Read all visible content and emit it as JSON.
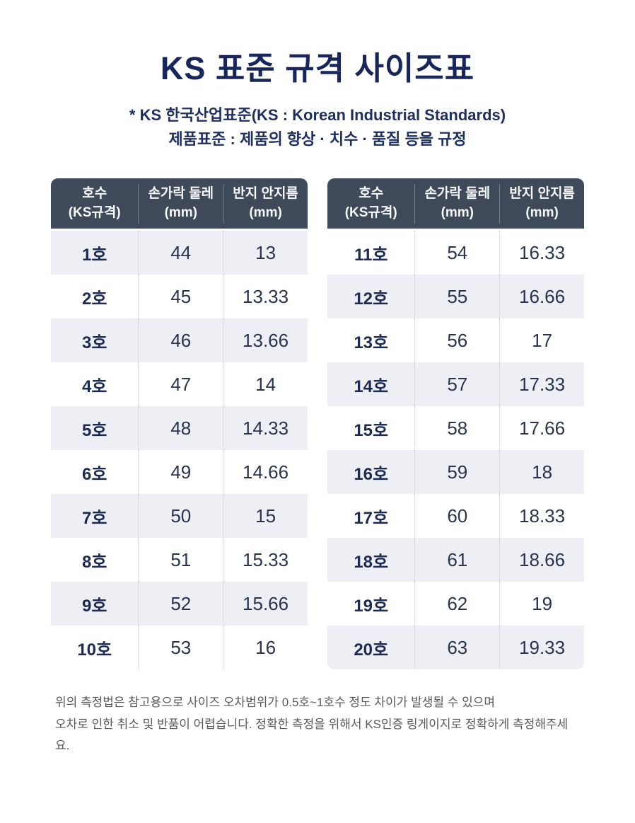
{
  "page": {
    "title": "KS 표준 규격 사이즈표",
    "subtitle_line1": "* KS 한국산업표준(KS : Korean Industrial Standards)",
    "subtitle_line2": "제품표준 : 제품의 향상 · 치수 · 품질 등을 규정",
    "footnote_line1": "위의 측정법은 참고용으로 사이즈 오차범위가 0.5호~1호수 정도 차이가 발생될 수 있으며",
    "footnote_line2": "오차로 인한 취소 및 반품이 어렵습니다. 정확한 측정을 위해서 KS인증 링게이지로 정확하게 측정해주세요."
  },
  "columns": [
    {
      "line1": "호수",
      "line2": "(KS규격)"
    },
    {
      "line1": "손가락 둘레",
      "line2": "(mm)"
    },
    {
      "line1": "반지 안지름",
      "line2": "(mm)"
    }
  ],
  "tables": [
    {
      "stripe_start": "first-row",
      "rows": [
        [
          "1호",
          "44",
          "13"
        ],
        [
          "2호",
          "45",
          "13.33"
        ],
        [
          "3호",
          "46",
          "13.66"
        ],
        [
          "4호",
          "47",
          "14"
        ],
        [
          "5호",
          "48",
          "14.33"
        ],
        [
          "6호",
          "49",
          "14.66"
        ],
        [
          "7호",
          "50",
          "15"
        ],
        [
          "8호",
          "51",
          "15.33"
        ],
        [
          "9호",
          "52",
          "15.66"
        ],
        [
          "10호",
          "53",
          "16"
        ]
      ]
    },
    {
      "stripe_start": "second-row",
      "rows": [
        [
          "11호",
          "54",
          "16.33"
        ],
        [
          "12호",
          "55",
          "16.66"
        ],
        [
          "13호",
          "56",
          "17"
        ],
        [
          "14호",
          "57",
          "17.33"
        ],
        [
          "15호",
          "58",
          "17.66"
        ],
        [
          "16호",
          "59",
          "18"
        ],
        [
          "17호",
          "60",
          "18.33"
        ],
        [
          "18호",
          "61",
          "18.66"
        ],
        [
          "19호",
          "62",
          "19"
        ],
        [
          "20호",
          "63",
          "19.33"
        ]
      ]
    }
  ],
  "colors": {
    "header_bg": "#3E4A59",
    "header_text": "#F7F8FA",
    "stripe_row": "#EDEFF4",
    "title_navy": "#17275C",
    "cell_navy": "#1C2B52",
    "footnote_gray": "#595959"
  }
}
